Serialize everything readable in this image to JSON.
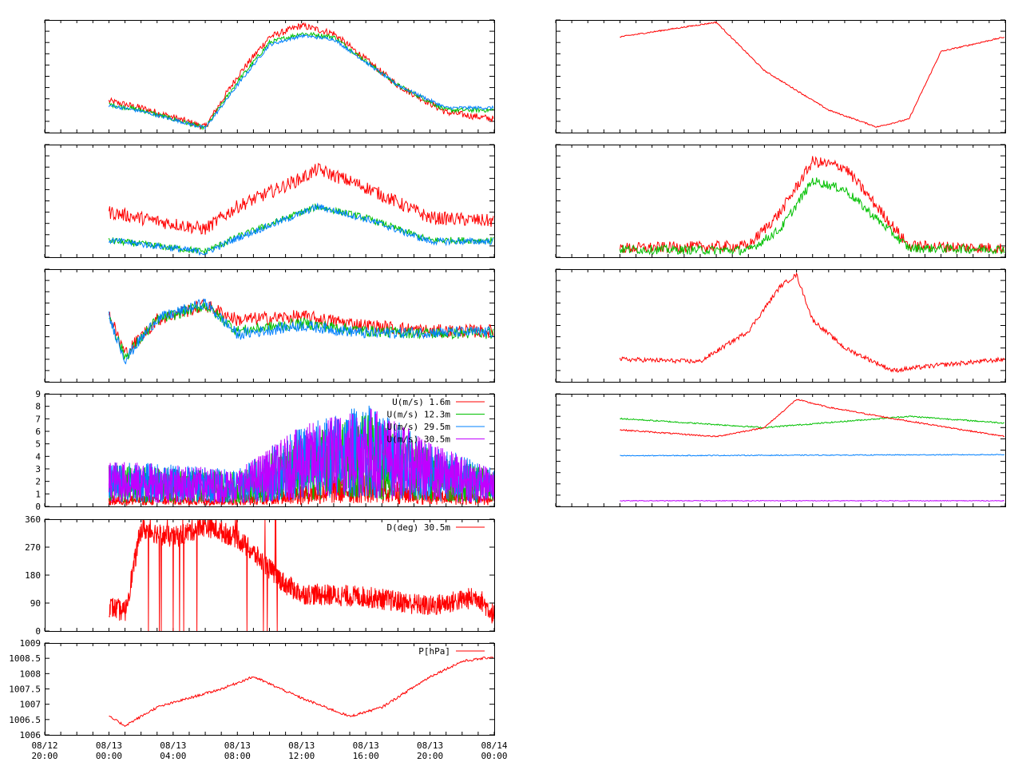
{
  "colors": {
    "red": "#ff0000",
    "green": "#00c000",
    "blue": "#0080ff",
    "purple": "#c000ff",
    "black": "#000000"
  },
  "x_axis": {
    "range": [
      "08/12 20:00",
      "08/14 00:00"
    ],
    "ticks": [
      {
        "date": "08/12",
        "time": "20:00"
      },
      {
        "date": "08/13",
        "time": "00:00"
      },
      {
        "date": "08/13",
        "time": "04:00"
      },
      {
        "date": "08/13",
        "time": "08:00"
      },
      {
        "date": "08/13",
        "time": "12:00"
      },
      {
        "date": "08/13",
        "time": "16:00"
      },
      {
        "date": "08/13",
        "time": "20:00"
      },
      {
        "date": "08/14",
        "time": "00:00"
      }
    ]
  },
  "chart_data": [
    {
      "id": "L1",
      "type": "line",
      "grid": false,
      "series": [
        {
          "color": "red",
          "x": [
            "08/13 00:00",
            "08/13 02:00",
            "08/13 06:00",
            "08/13 08:00",
            "08/13 10:00",
            "08/13 12:00",
            "08/13 14:00",
            "08/13 18:00",
            "08/13 21:00",
            "08/14 00:00"
          ],
          "values": [
            0.28,
            0.22,
            0.05,
            0.5,
            0.85,
            0.95,
            0.88,
            0.42,
            0.18,
            0.12
          ]
        },
        {
          "color": "green",
          "x": [
            "08/13 00:00",
            "08/13 02:00",
            "08/13 06:00",
            "08/13 08:00",
            "08/13 10:00",
            "08/13 12:00",
            "08/13 14:00",
            "08/13 18:00",
            "08/13 21:00",
            "08/14 00:00"
          ],
          "values": [
            0.25,
            0.2,
            0.04,
            0.45,
            0.8,
            0.88,
            0.85,
            0.42,
            0.2,
            0.2
          ]
        },
        {
          "color": "blue",
          "x": [
            "08/13 00:00",
            "08/13 02:00",
            "08/13 06:00",
            "08/13 08:00",
            "08/13 10:00",
            "08/13 12:00",
            "08/13 14:00",
            "08/13 18:00",
            "08/13 21:00",
            "08/14 00:00"
          ],
          "values": [
            0.24,
            0.19,
            0.04,
            0.42,
            0.78,
            0.86,
            0.83,
            0.42,
            0.22,
            0.22
          ]
        }
      ]
    },
    {
      "id": "R1",
      "type": "line",
      "grid": false,
      "series": [
        {
          "color": "red",
          "x": [
            "08/13 00:00",
            "08/13 06:00",
            "08/13 09:00",
            "08/13 13:00",
            "08/13 16:00",
            "08/13 18:00",
            "08/13 20:00",
            "08/14 00:00"
          ],
          "values": [
            0.85,
            0.98,
            0.55,
            0.2,
            0.05,
            0.12,
            0.72,
            0.85
          ]
        }
      ]
    },
    {
      "id": "L2",
      "type": "line",
      "grid": false,
      "series": [
        {
          "color": "red",
          "x": [
            "08/13 00:00",
            "08/13 03:00",
            "08/13 06:00",
            "08/13 08:00",
            "08/13 12:00",
            "08/13 13:00",
            "08/13 16:00",
            "08/13 20:00",
            "08/14 00:00"
          ],
          "values": [
            0.4,
            0.32,
            0.25,
            0.45,
            0.7,
            0.78,
            0.62,
            0.35,
            0.32
          ]
        },
        {
          "color": "green",
          "x": [
            "08/13 00:00",
            "08/13 03:00",
            "08/13 06:00",
            "08/13 08:00",
            "08/13 12:00",
            "08/13 13:00",
            "08/13 16:00",
            "08/13 20:00",
            "08/14 00:00"
          ],
          "values": [
            0.15,
            0.1,
            0.05,
            0.18,
            0.4,
            0.45,
            0.35,
            0.15,
            0.15
          ]
        },
        {
          "color": "blue",
          "x": [
            "08/13 00:00",
            "08/13 03:00",
            "08/13 06:00",
            "08/13 08:00",
            "08/13 12:00",
            "08/13 13:00",
            "08/13 16:00",
            "08/13 20:00",
            "08/14 00:00"
          ],
          "values": [
            0.15,
            0.1,
            0.04,
            0.17,
            0.39,
            0.45,
            0.34,
            0.14,
            0.14
          ]
        }
      ]
    },
    {
      "id": "R2",
      "type": "line",
      "grid": false,
      "series": [
        {
          "color": "red",
          "x": [
            "08/13 00:00",
            "08/13 08:00",
            "08/13 10:00",
            "08/13 12:00",
            "08/13 14:00",
            "08/13 18:00",
            "08/14 00:00"
          ],
          "values": [
            0.08,
            0.1,
            0.4,
            0.85,
            0.8,
            0.1,
            0.08
          ]
        },
        {
          "color": "green",
          "x": [
            "08/13 00:00",
            "08/13 08:00",
            "08/13 10:00",
            "08/13 12:00",
            "08/13 14:00",
            "08/13 18:00",
            "08/14 00:00"
          ],
          "values": [
            0.07,
            0.06,
            0.25,
            0.68,
            0.6,
            0.08,
            0.07
          ]
        }
      ]
    },
    {
      "id": "L3",
      "type": "line",
      "grid": false,
      "series": [
        {
          "color": "red",
          "x": [
            "08/13 00:00",
            "08/13 01:00",
            "08/13 03:00",
            "08/13 06:00",
            "08/13 08:00",
            "08/13 12:00",
            "08/13 16:00",
            "08/13 20:00",
            "08/14 00:00"
          ],
          "values": [
            0.6,
            0.25,
            0.55,
            0.68,
            0.55,
            0.58,
            0.5,
            0.45,
            0.45
          ]
        },
        {
          "color": "green",
          "x": [
            "08/13 00:00",
            "08/13 01:00",
            "08/13 03:00",
            "08/13 06:00",
            "08/13 08:00",
            "08/13 12:00",
            "08/13 16:00",
            "08/13 20:00",
            "08/14 00:00"
          ],
          "values": [
            0.58,
            0.22,
            0.55,
            0.68,
            0.45,
            0.52,
            0.45,
            0.43,
            0.43
          ]
        },
        {
          "color": "blue",
          "x": [
            "08/13 00:00",
            "08/13 01:00",
            "08/13 03:00",
            "08/13 06:00",
            "08/13 08:00",
            "08/13 12:00",
            "08/13 16:00",
            "08/13 20:00",
            "08/14 00:00"
          ],
          "values": [
            0.58,
            0.2,
            0.56,
            0.7,
            0.42,
            0.5,
            0.43,
            0.44,
            0.44
          ]
        }
      ]
    },
    {
      "id": "R3",
      "type": "line",
      "grid": false,
      "series": [
        {
          "color": "red",
          "x": [
            "08/13 00:00",
            "08/13 05:00",
            "08/13 08:00",
            "08/13 10:00",
            "08/13 11:00",
            "08/13 12:00",
            "08/13 14:00",
            "08/13 17:00",
            "08/13 20:00",
            "08/14 00:00"
          ],
          "values": [
            0.2,
            0.18,
            0.45,
            0.85,
            0.95,
            0.55,
            0.3,
            0.1,
            0.15,
            0.2
          ]
        }
      ]
    },
    {
      "id": "L4",
      "type": "line",
      "grid": false,
      "ylim": [
        0,
        9
      ],
      "yticks": [
        "0",
        "1",
        "2",
        "3",
        "4",
        "5",
        "6",
        "7",
        "8",
        "9"
      ],
      "legend": "top-right",
      "series": [
        {
          "name": "U(m/s)  1.6m",
          "color": "red",
          "x": [
            "08/13 00:00",
            "08/13 08:00",
            "08/13 12:00",
            "08/13 16:00",
            "08/13 20:00",
            "08/14 00:00"
          ],
          "values": [
            0.5,
            0.5,
            1.0,
            1.5,
            0.8,
            0.5
          ]
        },
        {
          "name": "U(m/s) 12.3m",
          "color": "green",
          "x": [
            "08/13 00:00",
            "08/13 08:00",
            "08/13 12:00",
            "08/13 16:00",
            "08/13 20:00",
            "08/14 00:00"
          ],
          "values": [
            1.8,
            1.5,
            3.0,
            4.0,
            2.5,
            1.5
          ]
        },
        {
          "name": "U(m/s) 29.5m",
          "color": "blue",
          "x": [
            "08/13 00:00",
            "08/13 08:00",
            "08/13 12:00",
            "08/13 16:00",
            "08/13 20:00",
            "08/14 00:00"
          ],
          "values": [
            2.0,
            1.6,
            3.5,
            4.5,
            2.8,
            1.6
          ]
        },
        {
          "name": "U(m/s) 30.5m",
          "color": "purple",
          "x": [
            "08/13 00:00",
            "08/13 08:00",
            "08/13 12:00",
            "08/13 16:00",
            "08/13 20:00",
            "08/14 00:00"
          ],
          "values": [
            2.0,
            1.6,
            3.5,
            4.5,
            2.8,
            1.6
          ]
        }
      ]
    },
    {
      "id": "R4",
      "type": "line",
      "grid": false,
      "series": [
        {
          "color": "green",
          "x": [
            "08/13 00:00",
            "08/13 09:00",
            "08/13 18:00",
            "08/14 00:00"
          ],
          "values": [
            0.78,
            0.7,
            0.8,
            0.74
          ]
        },
        {
          "color": "red",
          "x": [
            "08/13 00:00",
            "08/13 06:00",
            "08/13 09:00",
            "08/13 11:00",
            "08/13 13:00",
            "08/13 17:00",
            "08/14 00:00"
          ],
          "values": [
            0.68,
            0.62,
            0.7,
            0.95,
            0.88,
            0.78,
            0.62
          ]
        },
        {
          "color": "blue",
          "x": [
            "08/13 00:00",
            "08/14 00:00"
          ],
          "values": [
            0.45,
            0.46
          ]
        },
        {
          "color": "purple",
          "x": [
            "08/13 00:00",
            "08/14 00:00"
          ],
          "values": [
            0.05,
            0.05
          ]
        }
      ]
    },
    {
      "id": "L5",
      "type": "line",
      "grid": false,
      "ylim": [
        0,
        360
      ],
      "yticks": [
        "0",
        "90",
        "180",
        "270",
        "360"
      ],
      "legend": "top-right",
      "series": [
        {
          "name": "D(deg)  30.5m",
          "color": "red",
          "x": [
            "08/13 00:00",
            "08/13 01:00",
            "08/13 02:00",
            "08/13 04:00",
            "08/13 06:00",
            "08/13 08:00",
            "08/13 11:00",
            "08/13 12:00",
            "08/13 16:00",
            "08/13 20:00",
            "08/13 23:00",
            "08/14 00:00"
          ],
          "values": [
            80,
            60,
            330,
            300,
            340,
            300,
            150,
            120,
            110,
            80,
            110,
            50
          ]
        }
      ]
    },
    {
      "id": "L6",
      "type": "line",
      "grid": false,
      "ylim": [
        1006,
        1009
      ],
      "yticks": [
        "1006",
        "1006.5",
        "1007",
        "1007.5",
        "1008",
        "1008.5",
        "1009"
      ],
      "legend": "top-right",
      "series": [
        {
          "name": "P[hPa]",
          "color": "red",
          "x": [
            "08/13 00:00",
            "08/13 01:00",
            "08/13 03:00",
            "08/13 07:00",
            "08/13 09:00",
            "08/13 12:00",
            "08/13 15:00",
            "08/13 17:00",
            "08/13 20:00",
            "08/13 22:00",
            "08/14 00:00"
          ],
          "values": [
            1006.6,
            1006.3,
            1006.9,
            1007.5,
            1007.9,
            1007.2,
            1006.6,
            1006.9,
            1007.9,
            1008.4,
            1008.55
          ]
        }
      ]
    }
  ]
}
